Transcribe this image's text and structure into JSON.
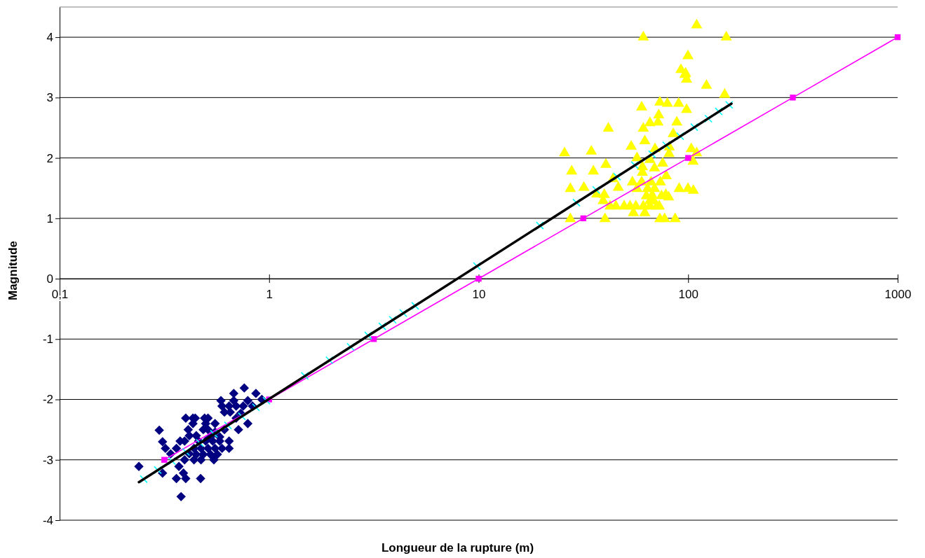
{
  "chart_data": {
    "type": "scatter",
    "xlabel": "Longueur de la rupture (m)",
    "ylabel": "Magnitude",
    "log": "x",
    "xlim": [
      0.1,
      1000
    ],
    "xticks": [
      {
        "value": 0.1,
        "label": "0,1"
      },
      1,
      10,
      100,
      1000
    ],
    "ylim": [
      -4,
      4.5
    ],
    "yticks": [
      -4,
      -3,
      -2,
      -1,
      0,
      1,
      2,
      3,
      4
    ],
    "grid": "y",
    "series": [
      {
        "type": "scatter",
        "marker": "diamond",
        "color": "#000080",
        "x": [
          0.239,
          0.299,
          0.31,
          0.32,
          0.339,
          0.31,
          0.361,
          0.4,
          0.38,
          0.371,
          0.39,
          0.471,
          0.376,
          0.361,
          0.395,
          0.411,
          0.4,
          0.433,
          0.444,
          0.433,
          0.492,
          0.511,
          0.498,
          0.552,
          0.416,
          0.449,
          0.485,
          0.511,
          0.461,
          0.498,
          0.538,
          0.581,
          0.438,
          0.473,
          0.511,
          0.552,
          0.596,
          0.644,
          0.449,
          0.485,
          0.525,
          0.566,
          0.438,
          0.473,
          0.395,
          0.545,
          0.581,
          0.612,
          0.644,
          0.596,
          0.612,
          0.644,
          0.678,
          0.696,
          0.678,
          0.589,
          0.752,
          0.761,
          0.865,
          0.791,
          0.714,
          0.791,
          0.696,
          0.732,
          0.833,
          0.923,
          0.652,
          0.552,
          0.525,
          0.416
        ],
        "values": [
          -3.11,
          -2.51,
          -2.7,
          -2.81,
          -2.9,
          -3.22,
          -3.31,
          -3.31,
          -3.61,
          -3.11,
          -3.22,
          -3.31,
          -2.69,
          -2.81,
          -2.69,
          -2.5,
          -2.31,
          -2.31,
          -2.31,
          -2.4,
          -2.31,
          -2.31,
          -2.4,
          -2.4,
          -2.6,
          -2.6,
          -2.5,
          -2.5,
          -2.69,
          -2.69,
          -2.69,
          -2.69,
          -2.81,
          -2.81,
          -2.81,
          -2.81,
          -2.81,
          -2.81,
          -2.91,
          -2.91,
          -2.91,
          -2.91,
          -3.0,
          -3.0,
          -3.0,
          -3.0,
          -2.62,
          -2.5,
          -2.69,
          -2.11,
          -2.21,
          -2.11,
          -2.02,
          -2.11,
          -1.9,
          -2.02,
          -2.11,
          -1.81,
          -1.9,
          -2.02,
          -2.5,
          -2.4,
          -2.31,
          -2.23,
          -2.11,
          -2.0,
          -2.21,
          -2.54,
          -2.62,
          -2.9
        ]
      },
      {
        "type": "scatter",
        "marker": "triangle",
        "color": "#ffff00",
        "x": [
          25.7,
          34.5,
          41.6,
          27.8,
          35.3,
          27.4,
          31.8,
          27.4,
          40.1,
          40.5,
          36.6,
          39.8,
          39.3,
          42.4,
          45.2,
          49.5,
          52.8,
          56.3,
          54.8,
          61.1,
          62.1,
          65.7,
          70.9,
          72.8,
          73.3,
          77.2,
          86.7,
          43.8,
          46.4,
          54.2,
          57.0,
          60.0,
          64.0,
          66.5,
          69.1,
          73.7,
          78.6,
          75.6,
          69.1,
          65.7,
          60.5,
          60.5,
          57.0,
          53.5,
          62.1,
          61.1,
          65.7,
          71.8,
          72.4,
          60.0,
          73.3,
          79.6,
          90.1,
          98.3,
          88.3,
          84.9,
          81.3,
          81.1,
          69.5,
          63.2,
          67.4,
          74.6,
          78.2,
          80.7,
          90.6,
          99.8,
          105.9,
          103.5,
          109.8,
          105.6,
          65.7,
          68.2,
          61.1,
          109.8,
          152.1,
          99.8,
          92.4,
          97.3,
          98.3,
          96.5,
          122.3,
          149.4
        ],
        "values": [
          2.08,
          2.11,
          2.49,
          1.78,
          1.78,
          1.49,
          1.51,
          0.99,
          0.99,
          1.89,
          1.4,
          1.39,
          1.29,
          1.2,
          1.2,
          1.2,
          1.2,
          1.2,
          1.09,
          1.2,
          1.09,
          1.2,
          1.2,
          1.2,
          0.99,
          0.99,
          0.99,
          1.65,
          1.51,
          1.6,
          1.49,
          1.6,
          1.49,
          1.6,
          1.49,
          1.6,
          1.7,
          1.91,
          1.83,
          1.97,
          1.85,
          1.76,
          2.0,
          2.19,
          2.28,
          2.49,
          2.58,
          2.59,
          2.71,
          2.84,
          2.92,
          2.9,
          2.9,
          2.8,
          2.59,
          2.4,
          2.18,
          2.07,
          2.15,
          1.37,
          1.38,
          1.37,
          1.39,
          1.35,
          1.49,
          1.49,
          1.46,
          2.15,
          2.08,
          1.94,
          1.29,
          1.29,
          4.0,
          4.2,
          4.0,
          3.69,
          3.46,
          3.4,
          3.3,
          3.38,
          3.2,
          3.05
        ]
      },
      {
        "type": "line",
        "marker": "square",
        "color": "#ff00ff",
        "x": [
          0.316,
          1,
          3.16,
          10,
          31.6,
          100,
          316,
          1000
        ],
        "values": [
          -3,
          -2,
          -1,
          0,
          1,
          2,
          3,
          4
        ]
      },
      {
        "type": "scatter",
        "marker": "cross",
        "color": "#00ffff",
        "x": [
          0.252,
          0.294,
          0.344,
          0.401,
          0.467,
          0.545,
          0.636,
          0.741,
          0.865,
          0.971,
          1.48,
          1.94,
          2.45,
          2.97,
          3.47,
          3.89,
          4.37,
          4.98,
          9.81,
          19.6,
          29.3,
          36.4,
          45.8,
          55.6,
          67.3,
          78.5,
          91.6,
          107,
          125,
          140,
          157
        ],
        "values": [
          -3.32,
          -3.17,
          -3.02,
          -2.87,
          -2.72,
          -2.57,
          -2.43,
          -2.28,
          -2.13,
          -2.02,
          -1.61,
          -1.35,
          -1.13,
          -0.94,
          -0.79,
          -0.68,
          -0.57,
          -0.45,
          0.21,
          0.88,
          1.26,
          1.47,
          1.69,
          1.88,
          2.06,
          2.21,
          2.36,
          2.51,
          2.65,
          2.77,
          2.88
        ]
      },
      {
        "type": "line",
        "marker": "none",
        "color": "#000000",
        "x": [
          0.239,
          161
        ],
        "values": [
          -3.37,
          2.9
        ]
      }
    ]
  }
}
